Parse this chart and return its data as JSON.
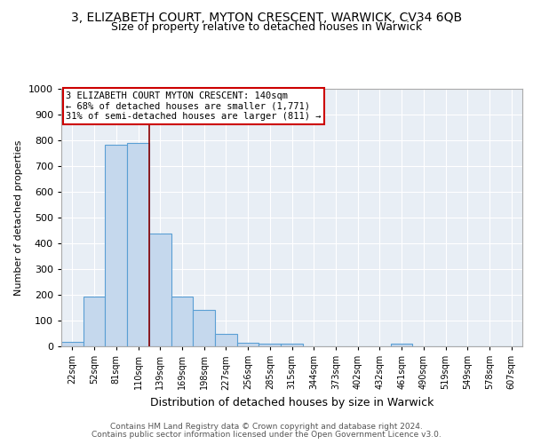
{
  "title": "3, ELIZABETH COURT, MYTON CRESCENT, WARWICK, CV34 6QB",
  "subtitle": "Size of property relative to detached houses in Warwick",
  "xlabel": "Distribution of detached houses by size in Warwick",
  "ylabel": "Number of detached properties",
  "bar_labels": [
    "22sqm",
    "52sqm",
    "81sqm",
    "110sqm",
    "139sqm",
    "169sqm",
    "198sqm",
    "227sqm",
    "256sqm",
    "285sqm",
    "315sqm",
    "344sqm",
    "373sqm",
    "402sqm",
    "432sqm",
    "461sqm",
    "490sqm",
    "519sqm",
    "549sqm",
    "578sqm",
    "607sqm"
  ],
  "bar_values": [
    18,
    193,
    783,
    790,
    437,
    192,
    140,
    50,
    15,
    12,
    12,
    0,
    0,
    0,
    0,
    12,
    0,
    0,
    0,
    0,
    0
  ],
  "bar_color": "#c5d8ed",
  "bar_edge_color": "#5a9fd4",
  "bar_edge_width": 0.8,
  "property_line_index": 4,
  "property_line_color": "#8b0000",
  "annotation_text": "3 ELIZABETH COURT MYTON CRESCENT: 140sqm\n← 68% of detached houses are smaller (1,771)\n31% of semi-detached houses are larger (811) →",
  "annotation_box_color": "#ffffff",
  "annotation_box_edge_color": "#cc0000",
  "ylim": [
    0,
    1000
  ],
  "yticks": [
    0,
    100,
    200,
    300,
    400,
    500,
    600,
    700,
    800,
    900,
    1000
  ],
  "background_color": "#e8eef5",
  "grid_color": "#ffffff",
  "title_fontsize": 10,
  "subtitle_fontsize": 9,
  "footer_line1": "Contains HM Land Registry data © Crown copyright and database right 2024.",
  "footer_line2": "Contains public sector information licensed under the Open Government Licence v3.0."
}
